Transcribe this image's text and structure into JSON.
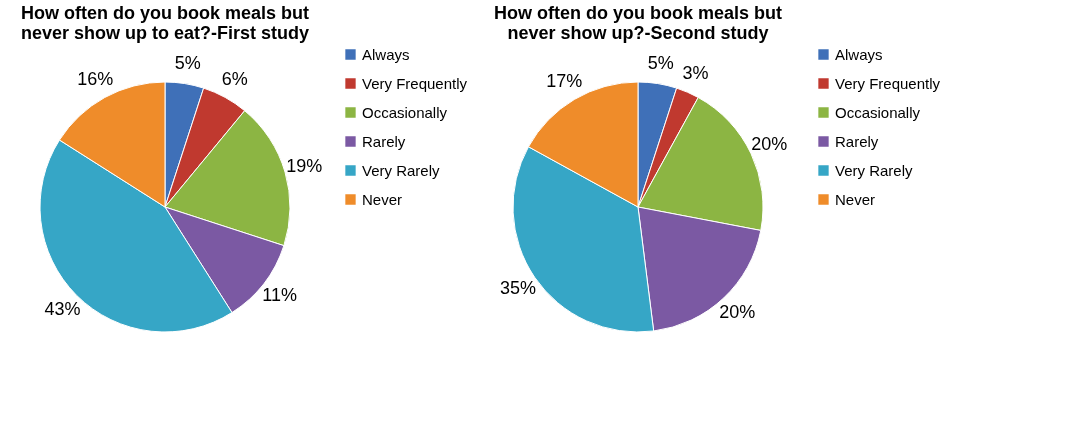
{
  "chart_data": [
    {
      "type": "pie",
      "title": "How often do you book meals but never show up to eat?-First study",
      "categories": [
        "Always",
        "Very Frequently",
        "Occasionally",
        "Rarely",
        "Very Rarely",
        "Never"
      ],
      "values": [
        5,
        6,
        19,
        11,
        43,
        16
      ],
      "value_labels": [
        "5%",
        "6%",
        "19%",
        "11%",
        "43%",
        "16%"
      ],
      "colors": [
        "#3f70b8",
        "#c0392f",
        "#8cb543",
        "#7b59a3",
        "#36a6c6",
        "#ef8c2a"
      ],
      "legend": "right"
    },
    {
      "type": "pie",
      "title": "How often do you book meals but never show up?-Second study",
      "categories": [
        "Always",
        "Very Frequently",
        "Occasionally",
        "Rarely",
        "Very Rarely",
        "Never"
      ],
      "values": [
        5,
        3,
        20,
        20,
        35,
        17
      ],
      "value_labels": [
        "5%",
        "3%",
        "20%",
        "20%",
        "35%",
        "17%"
      ],
      "colors": [
        "#3f70b8",
        "#c0392f",
        "#8cb543",
        "#7b59a3",
        "#36a6c6",
        "#ef8c2a"
      ],
      "legend": "right"
    }
  ]
}
